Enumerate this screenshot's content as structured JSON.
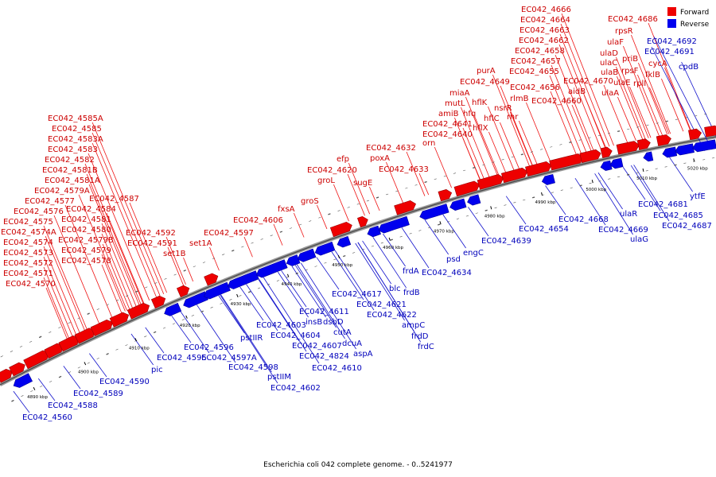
{
  "caption": "Escherichia coli 042 complete genome. - 0..5241977",
  "legend": {
    "forward_label": "Forward",
    "reverse_label": "Reverse",
    "forward_color": "#ee0000",
    "reverse_color": "#0000ee"
  },
  "colors": {
    "forward_stroke": "#990000",
    "reverse_stroke": "#000099",
    "forward_line": "#ee1111",
    "reverse_line": "#1111cc"
  },
  "axis": {
    "start_kbp": 4885,
    "end_kbp": 5025,
    "ticks": [
      {
        "kbp": 4890,
        "label": "4890 kbp"
      },
      {
        "kbp": 4900,
        "label": "4900 kbp"
      },
      {
        "kbp": 4910,
        "label": "4910 kbp"
      },
      {
        "kbp": 4920,
        "label": "4920 kbp"
      },
      {
        "kbp": 4930,
        "label": "4930 kbp"
      },
      {
        "kbp": 4940,
        "label": "4940 kbp"
      },
      {
        "kbp": 4950,
        "label": "4950 kbp"
      },
      {
        "kbp": 4960,
        "label": "4960 kbp"
      },
      {
        "kbp": 4970,
        "label": "4970 kbp"
      },
      {
        "kbp": 4980,
        "label": "4980 kbp"
      },
      {
        "kbp": 4990,
        "label": "4990 kbp"
      },
      {
        "kbp": 5000,
        "label": "5000 kbp"
      },
      {
        "kbp": 5010,
        "label": "5010 kbp"
      },
      {
        "kbp": 5020,
        "label": "5020 kbp"
      }
    ]
  },
  "forward_labels": [
    "EC042_4585A",
    "EC042_4585",
    "EC042_4583A",
    "EC042_4583",
    "EC042_4582",
    "EC042_4581B",
    "EC042_4581A",
    "EC042_4579A",
    "EC042_4577",
    "EC042_4576",
    "EC042_4575",
    "EC042_4574A",
    "EC042_4574",
    "EC042_4573",
    "EC042_4572",
    "EC042_4571",
    "EC042_4570",
    "EC042_4587",
    "EC042_4584",
    "EC042_4581",
    "EC042_4580",
    "EC042_4579B",
    "EC042_4579",
    "EC042_4578",
    "EC042_4592",
    "EC042_4591",
    "set1B",
    "set1A",
    "EC042_4597",
    "EC042_4606",
    "fxsA",
    "groS",
    "efp",
    "EC042_4620",
    "groL",
    "sugE",
    "EC042_4632",
    "poxA",
    "EC042_4633",
    "orn",
    "EC042_4640",
    "EC042_4641",
    "amiB",
    "mutL",
    "miaA",
    "hfq",
    "hflX",
    "hflK",
    "hflC",
    "nsrR",
    "rnr",
    "rlmB",
    "purA",
    "EC042_4649",
    "EC042_4655",
    "EC042_4656",
    "EC042_4657",
    "EC042_4658",
    "EC042_4660",
    "EC042_4662",
    "EC042_4663",
    "EC042_4664",
    "EC042_4666",
    "aidB",
    "EC042_4670",
    "EC042_4686",
    "rpsR",
    "ulaF",
    "ulaD",
    "ulaC",
    "ulaB",
    "ulaE",
    "ulaA",
    "priB",
    "rpsF",
    "rplI",
    "cycA",
    "fklB"
  ],
  "reverse_labels": [
    "EC042_4560",
    "EC042_4588",
    "EC042_4589",
    "EC042_4590",
    "pic",
    "EC042_4595",
    "EC042_4596",
    "EC042_4597A",
    "EC042_4598",
    "pstIIR",
    "pstIIM",
    "EC042_4602",
    "EC042_4603",
    "EC042_4604",
    "insB",
    "EC042_4611",
    "EC042_4607",
    "dsbD",
    "cutA",
    "EC042_4824",
    "dcuA",
    "EC042_4610",
    "aspA",
    "EC042_4617",
    "EC042_4621",
    "blc",
    "EC042_4622",
    "frdA",
    "frdB",
    "ampC",
    "frdD",
    "frdC",
    "EC042_4634",
    "psd",
    "engC",
    "EC042_4639",
    "EC042_4654",
    "EC042_4668",
    "EC042_4669",
    "ulaR",
    "ulaG",
    "EC042_4681",
    "EC042_4685",
    "EC042_4687",
    "ytfE",
    "EC042_4691",
    "EC042_4692",
    "cpdB"
  ]
}
